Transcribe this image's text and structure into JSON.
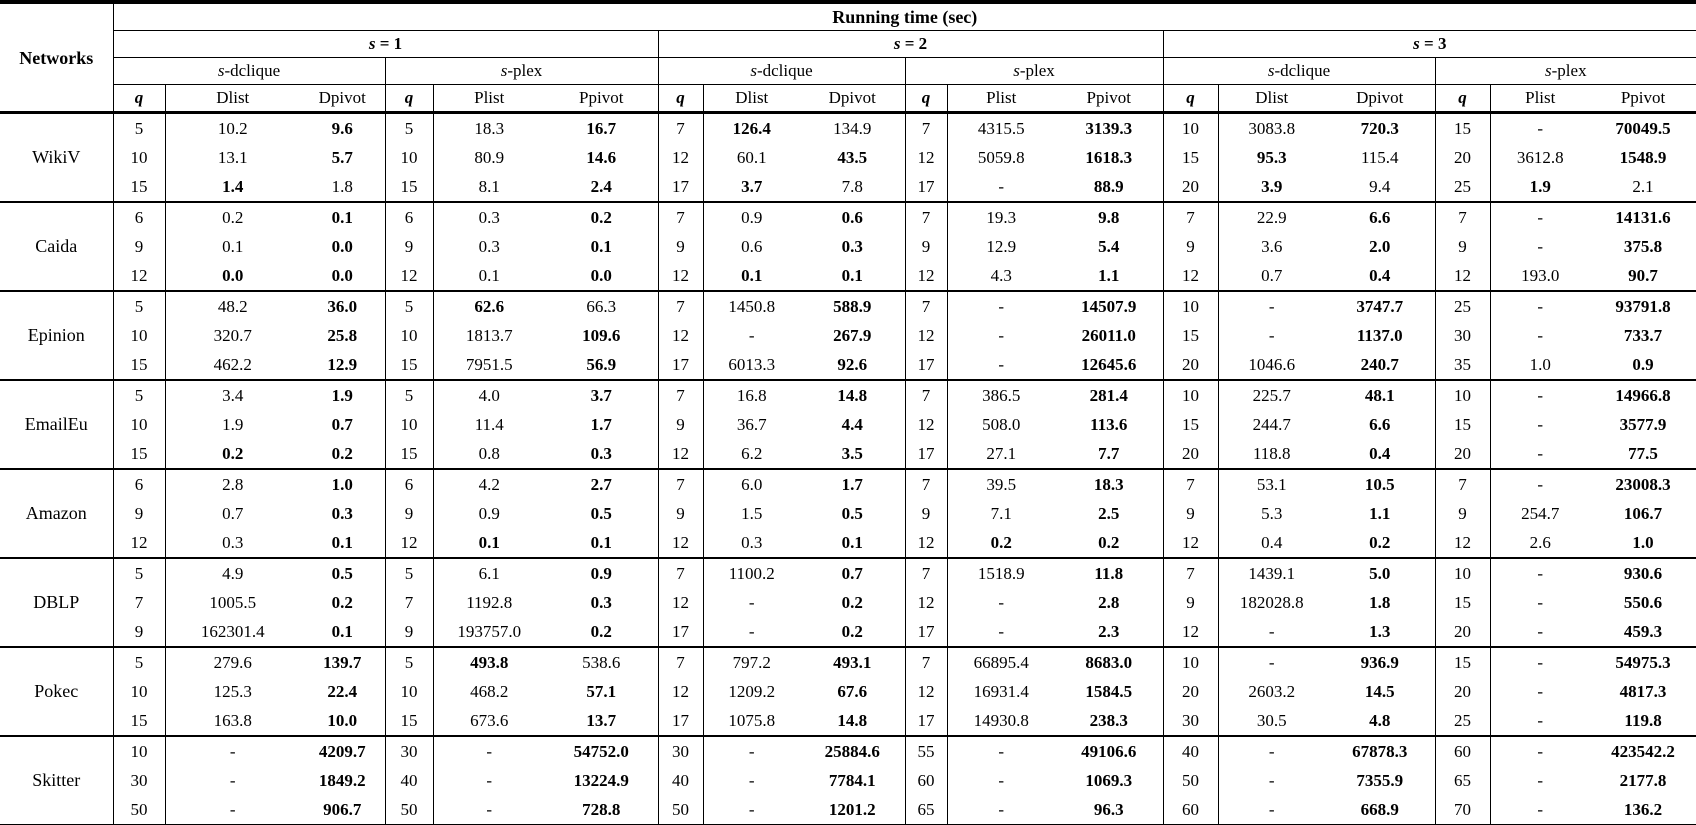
{
  "colors": {
    "text": "#000000",
    "background": "#ffffff",
    "rule": "#000000"
  },
  "table": {
    "networks_label": "Networks",
    "running_time_label": "Running time (sec)",
    "s_groups": [
      "s = 1",
      "s = 2",
      "s = 3"
    ],
    "subgroup_labels": [
      "s-dclique",
      "s-plex"
    ],
    "column_headers": {
      "q": "q",
      "dclique": [
        "Dlist",
        "Dpivot"
      ],
      "plex": [
        "Plist",
        "Ppivot"
      ]
    },
    "bold_note": "values prefixed with * are rendered bold (best running time)",
    "rows": [
      {
        "network": "WikiV",
        "lines": [
          [
            "5",
            "10.2",
            "*9.6",
            "5",
            "18.3",
            "*16.7",
            "7",
            "*126.4",
            "134.9",
            "7",
            "4315.5",
            "*3139.3",
            "10",
            "3083.8",
            "*720.3",
            "15",
            "-",
            "*70049.5"
          ],
          [
            "10",
            "13.1",
            "*5.7",
            "10",
            "80.9",
            "*14.6",
            "12",
            "60.1",
            "*43.5",
            "12",
            "5059.8",
            "*1618.3",
            "15",
            "*95.3",
            "115.4",
            "20",
            "3612.8",
            "*1548.9"
          ],
          [
            "15",
            "*1.4",
            "1.8",
            "15",
            "8.1",
            "*2.4",
            "17",
            "*3.7",
            "7.8",
            "17",
            "-",
            "*88.9",
            "20",
            "*3.9",
            "9.4",
            "25",
            "*1.9",
            "2.1"
          ]
        ]
      },
      {
        "network": "Caida",
        "lines": [
          [
            "6",
            "0.2",
            "*0.1",
            "6",
            "0.3",
            "*0.2",
            "7",
            "0.9",
            "*0.6",
            "7",
            "19.3",
            "*9.8",
            "7",
            "22.9",
            "*6.6",
            "7",
            "-",
            "*14131.6"
          ],
          [
            "9",
            "0.1",
            "*0.0",
            "9",
            "0.3",
            "*0.1",
            "9",
            "0.6",
            "*0.3",
            "9",
            "12.9",
            "*5.4",
            "9",
            "3.6",
            "*2.0",
            "9",
            "-",
            "*375.8"
          ],
          [
            "12",
            "*0.0",
            "*0.0",
            "12",
            "0.1",
            "*0.0",
            "12",
            "*0.1",
            "*0.1",
            "12",
            "4.3",
            "*1.1",
            "12",
            "0.7",
            "*0.4",
            "12",
            "193.0",
            "*90.7"
          ]
        ]
      },
      {
        "network": "Epinion",
        "lines": [
          [
            "5",
            "48.2",
            "*36.0",
            "5",
            "*62.6",
            "66.3",
            "7",
            "1450.8",
            "*588.9",
            "7",
            "-",
            "*14507.9",
            "10",
            "-",
            "*3747.7",
            "25",
            "-",
            "*93791.8"
          ],
          [
            "10",
            "320.7",
            "*25.8",
            "10",
            "1813.7",
            "*109.6",
            "12",
            "-",
            "*267.9",
            "12",
            "-",
            "*26011.0",
            "15",
            "-",
            "*1137.0",
            "30",
            "-",
            "*733.7"
          ],
          [
            "15",
            "462.2",
            "*12.9",
            "15",
            "7951.5",
            "*56.9",
            "17",
            "6013.3",
            "*92.6",
            "17",
            "-",
            "*12645.6",
            "20",
            "1046.6",
            "*240.7",
            "35",
            "1.0",
            "*0.9"
          ]
        ]
      },
      {
        "network": "EmailEu",
        "lines": [
          [
            "5",
            "3.4",
            "*1.9",
            "5",
            "4.0",
            "*3.7",
            "7",
            "16.8",
            "*14.8",
            "7",
            "386.5",
            "*281.4",
            "10",
            "225.7",
            "*48.1",
            "10",
            "-",
            "*14966.8"
          ],
          [
            "10",
            "1.9",
            "*0.7",
            "10",
            "11.4",
            "*1.7",
            "9",
            "36.7",
            "*4.4",
            "12",
            "508.0",
            "*113.6",
            "15",
            "244.7",
            "*6.6",
            "15",
            "-",
            "*3577.9"
          ],
          [
            "15",
            "*0.2",
            "*0.2",
            "15",
            "0.8",
            "*0.3",
            "12",
            "6.2",
            "*3.5",
            "17",
            "27.1",
            "*7.7",
            "20",
            "118.8",
            "*0.4",
            "20",
            "-",
            "*77.5"
          ]
        ]
      },
      {
        "network": "Amazon",
        "lines": [
          [
            "6",
            "2.8",
            "*1.0",
            "6",
            "4.2",
            "*2.7",
            "7",
            "6.0",
            "*1.7",
            "7",
            "39.5",
            "*18.3",
            "7",
            "53.1",
            "*10.5",
            "7",
            "-",
            "*23008.3"
          ],
          [
            "9",
            "0.7",
            "*0.3",
            "9",
            "0.9",
            "*0.5",
            "9",
            "1.5",
            "*0.5",
            "9",
            "7.1",
            "*2.5",
            "9",
            "5.3",
            "*1.1",
            "9",
            "254.7",
            "*106.7"
          ],
          [
            "12",
            "0.3",
            "*0.1",
            "12",
            "*0.1",
            "*0.1",
            "12",
            "0.3",
            "*0.1",
            "12",
            "*0.2",
            "*0.2",
            "12",
            "0.4",
            "*0.2",
            "12",
            "2.6",
            "*1.0"
          ]
        ]
      },
      {
        "network": "DBLP",
        "lines": [
          [
            "5",
            "4.9",
            "*0.5",
            "5",
            "6.1",
            "*0.9",
            "7",
            "1100.2",
            "*0.7",
            "7",
            "1518.9",
            "*11.8",
            "7",
            "1439.1",
            "*5.0",
            "10",
            "-",
            "*930.6"
          ],
          [
            "7",
            "1005.5",
            "*0.2",
            "7",
            "1192.8",
            "*0.3",
            "12",
            "-",
            "*0.2",
            "12",
            "-",
            "*2.8",
            "9",
            "182028.8",
            "*1.8",
            "15",
            "-",
            "*550.6"
          ],
          [
            "9",
            "162301.4",
            "*0.1",
            "9",
            "193757.0",
            "*0.2",
            "17",
            "-",
            "*0.2",
            "17",
            "-",
            "*2.3",
            "12",
            "-",
            "*1.3",
            "20",
            "-",
            "*459.3"
          ]
        ]
      },
      {
        "network": "Pokec",
        "lines": [
          [
            "5",
            "279.6",
            "*139.7",
            "5",
            "*493.8",
            "538.6",
            "7",
            "797.2",
            "*493.1",
            "7",
            "66895.4",
            "*8683.0",
            "10",
            "-",
            "*936.9",
            "15",
            "-",
            "*54975.3"
          ],
          [
            "10",
            "125.3",
            "*22.4",
            "10",
            "468.2",
            "*57.1",
            "12",
            "1209.2",
            "*67.6",
            "12",
            "16931.4",
            "*1584.5",
            "20",
            "2603.2",
            "*14.5",
            "20",
            "-",
            "*4817.3"
          ],
          [
            "15",
            "163.8",
            "*10.0",
            "15",
            "673.6",
            "*13.7",
            "17",
            "1075.8",
            "*14.8",
            "17",
            "14930.8",
            "*238.3",
            "30",
            "30.5",
            "*4.8",
            "25",
            "-",
            "*119.8"
          ]
        ]
      },
      {
        "network": "Skitter",
        "lines": [
          [
            "10",
            "-",
            "*4209.7",
            "30",
            "-",
            "*54752.0",
            "30",
            "-",
            "*25884.6",
            "55",
            "-",
            "*49106.6",
            "40",
            "-",
            "*67878.3",
            "60",
            "-",
            "*423542.2"
          ],
          [
            "30",
            "-",
            "*1849.2",
            "40",
            "-",
            "*13224.9",
            "40",
            "-",
            "*7784.1",
            "60",
            "-",
            "*1069.3",
            "50",
            "-",
            "*7355.9",
            "65",
            "-",
            "*2177.8"
          ],
          [
            "50",
            "-",
            "*906.7",
            "50",
            "-",
            "*728.8",
            "50",
            "-",
            "*1201.2",
            "65",
            "-",
            "*96.3",
            "60",
            "-",
            "*668.9",
            "70",
            "-",
            "*136.2"
          ]
        ]
      }
    ]
  }
}
